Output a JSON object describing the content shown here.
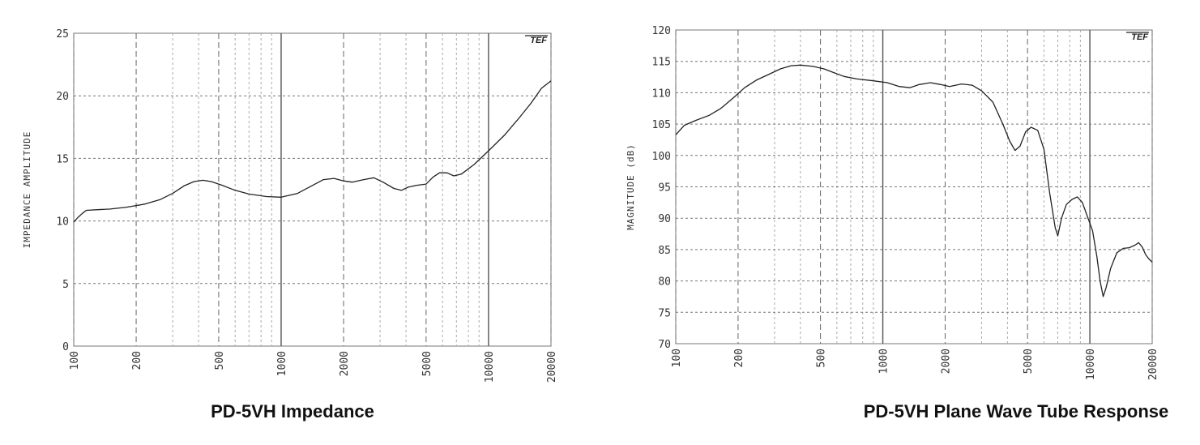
{
  "chart_data": [
    {
      "type": "line",
      "title": "PD-5VH Impedance",
      "xlabel": "",
      "ylabel": "IMPEDANCE AMPLITUDE",
      "xscale": "log",
      "xlim": [
        100,
        20000
      ],
      "ylim": [
        0,
        25
      ],
      "x_ticks": [
        100,
        200,
        500,
        1000,
        2000,
        5000,
        10000,
        20000
      ],
      "x_tick_labels": [
        "100",
        "200",
        "500",
        "1000",
        "2000",
        "5000",
        "10000",
        "20000"
      ],
      "y_ticks": [
        0,
        5,
        10,
        15,
        20,
        25
      ],
      "y_tick_labels": [
        "0",
        "5",
        "10",
        "15",
        "20",
        "25"
      ],
      "grid": true,
      "logo": "TEF",
      "series": [
        {
          "points": [
            [
              100,
              9.9
            ],
            [
              105,
              10.3
            ],
            [
              110,
              10.6
            ],
            [
              115,
              10.85
            ],
            [
              130,
              10.9
            ],
            [
              150,
              10.95
            ],
            [
              180,
              11.1
            ],
            [
              220,
              11.35
            ],
            [
              260,
              11.7
            ],
            [
              300,
              12.2
            ],
            [
              340,
              12.8
            ],
            [
              380,
              13.15
            ],
            [
              420,
              13.25
            ],
            [
              460,
              13.15
            ],
            [
              520,
              12.85
            ],
            [
              600,
              12.45
            ],
            [
              700,
              12.15
            ],
            [
              850,
              11.95
            ],
            [
              1000,
              11.9
            ],
            [
              1200,
              12.2
            ],
            [
              1400,
              12.8
            ],
            [
              1600,
              13.3
            ],
            [
              1800,
              13.4
            ],
            [
              2000,
              13.2
            ],
            [
              2200,
              13.1
            ],
            [
              2500,
              13.3
            ],
            [
              2800,
              13.45
            ],
            [
              3100,
              13.1
            ],
            [
              3500,
              12.6
            ],
            [
              3800,
              12.45
            ],
            [
              4100,
              12.7
            ],
            [
              4500,
              12.85
            ],
            [
              5000,
              12.95
            ],
            [
              5400,
              13.5
            ],
            [
              5800,
              13.85
            ],
            [
              6300,
              13.85
            ],
            [
              6800,
              13.6
            ],
            [
              7400,
              13.75
            ],
            [
              8500,
              14.5
            ],
            [
              10000,
              15.6
            ],
            [
              12000,
              16.9
            ],
            [
              14000,
              18.2
            ],
            [
              16000,
              19.4
            ],
            [
              18000,
              20.6
            ],
            [
              20000,
              21.2
            ]
          ]
        }
      ]
    },
    {
      "type": "line",
      "title": "PD-5VH Plane Wave Tube Response",
      "xlabel": "",
      "ylabel": "MAGNITUDE (dB)",
      "xscale": "log",
      "xlim": [
        100,
        20000
      ],
      "ylim": [
        70,
        120
      ],
      "x_ticks": [
        100,
        200,
        500,
        1000,
        2000,
        5000,
        10000,
        20000
      ],
      "x_tick_labels": [
        "100",
        "200",
        "500",
        "1000",
        "2000",
        "5000",
        "10000",
        "20000"
      ],
      "y_ticks": [
        70,
        75,
        80,
        85,
        90,
        95,
        100,
        105,
        110,
        115,
        120
      ],
      "y_tick_labels": [
        "70",
        "75",
        "80",
        "85",
        "90",
        "95",
        "100",
        "105",
        "110",
        "115",
        "120"
      ],
      "grid": true,
      "logo": "TEF",
      "series": [
        {
          "points": [
            [
              100,
              103.3
            ],
            [
              110,
              104.8
            ],
            [
              125,
              105.6
            ],
            [
              145,
              106.4
            ],
            [
              165,
              107.5
            ],
            [
              190,
              109.2
            ],
            [
              215,
              110.8
            ],
            [
              245,
              112.0
            ],
            [
              280,
              112.9
            ],
            [
              320,
              113.8
            ],
            [
              360,
              114.3
            ],
            [
              400,
              114.4
            ],
            [
              460,
              114.2
            ],
            [
              520,
              113.8
            ],
            [
              580,
              113.2
            ],
            [
              650,
              112.6
            ],
            [
              750,
              112.2
            ],
            [
              900,
              111.9
            ],
            [
              1050,
              111.6
            ],
            [
              1200,
              111.0
            ],
            [
              1350,
              110.8
            ],
            [
              1500,
              111.3
            ],
            [
              1700,
              111.6
            ],
            [
              1900,
              111.3
            ],
            [
              2100,
              111.0
            ],
            [
              2400,
              111.4
            ],
            [
              2700,
              111.2
            ],
            [
              3000,
              110.3
            ],
            [
              3400,
              108.5
            ],
            [
              3800,
              105.0
            ],
            [
              4100,
              102.3
            ],
            [
              4350,
              100.8
            ],
            [
              4600,
              101.5
            ],
            [
              4900,
              103.8
            ],
            [
              5200,
              104.5
            ],
            [
              5600,
              104.0
            ],
            [
              6000,
              101.0
            ],
            [
              6400,
              94.0
            ],
            [
              6800,
              88.5
            ],
            [
              7000,
              87.2
            ],
            [
              7300,
              90.0
            ],
            [
              7700,
              92.2
            ],
            [
              8200,
              93.0
            ],
            [
              8700,
              93.4
            ],
            [
              9200,
              92.5
            ],
            [
              9800,
              90.0
            ],
            [
              10300,
              88.0
            ],
            [
              10800,
              84.0
            ],
            [
              11200,
              80.0
            ],
            [
              11600,
              77.5
            ],
            [
              12000,
              79.0
            ],
            [
              12600,
              82.0
            ],
            [
              13500,
              84.5
            ],
            [
              14500,
              85.2
            ],
            [
              15500,
              85.3
            ],
            [
              16500,
              85.7
            ],
            [
              17200,
              86.1
            ],
            [
              17900,
              85.4
            ],
            [
              18600,
              84.2
            ],
            [
              19300,
              83.5
            ],
            [
              20000,
              83.0
            ]
          ]
        }
      ]
    }
  ]
}
